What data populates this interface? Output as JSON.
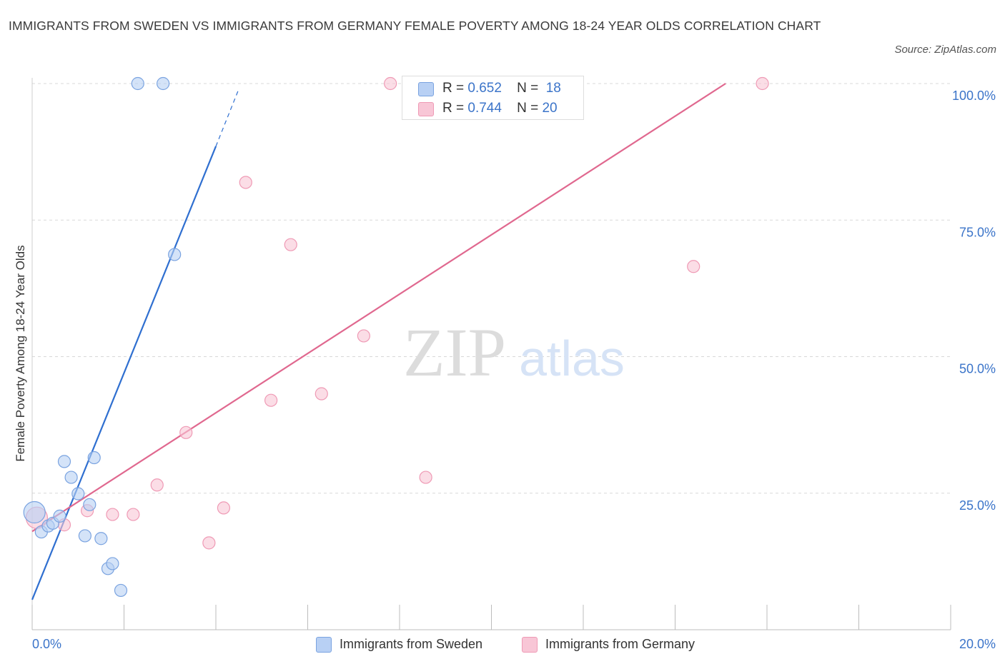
{
  "title": "IMMIGRANTS FROM SWEDEN VS IMMIGRANTS FROM GERMANY FEMALE POVERTY AMONG 18-24 YEAR OLDS CORRELATION CHART",
  "source": "Source: ZipAtlas.com",
  "watermark": {
    "zip": "ZIP",
    "atlas": "atlas"
  },
  "colors": {
    "sweden_fill": "#b8d0f4",
    "sweden_stroke": "#7aa3e0",
    "sweden_line": "#2f6fd0",
    "germany_fill": "#f8c6d6",
    "germany_stroke": "#ef9ab5",
    "germany_line": "#e0688f",
    "grid": "#d8d8d8",
    "tick_label": "#3b74c9"
  },
  "legend_top": [
    {
      "r_label": "R =",
      "r_value": "0.652",
      "n_label": "N =",
      "n_value": "18"
    },
    {
      "r_label": "R =",
      "r_value": "0.744",
      "n_label": "N =",
      "n_value": "20"
    }
  ],
  "legend_bottom": [
    "Immigrants from Sweden",
    "Immigrants from Germany"
  ],
  "chart_data": {
    "type": "scatter",
    "title": "IMMIGRANTS FROM SWEDEN VS IMMIGRANTS FROM GERMANY FEMALE POVERTY AMONG 18-24 YEAR OLDS CORRELATION CHART",
    "xlabel": "",
    "ylabel": "Female Poverty Among 18-24 Year Olds",
    "xlim": [
      0,
      20
    ],
    "ylim": [
      0,
      100
    ],
    "x_tick_labels": [
      {
        "value": 0,
        "label": "0.0%"
      },
      {
        "value": 20,
        "label": "20.0%"
      }
    ],
    "y_tick_labels": [
      {
        "value": 25,
        "label": "25.0%"
      },
      {
        "value": 50,
        "label": "50.0%"
      },
      {
        "value": 75,
        "label": "75.0%"
      },
      {
        "value": 100,
        "label": "100.0%"
      }
    ],
    "grid": true,
    "legend_position": "bottom",
    "series": [
      {
        "name": "Immigrants from Sweden",
        "r": 0.652,
        "n": 18,
        "points": [
          {
            "x": 0.05,
            "y": 21.5,
            "size": "large"
          },
          {
            "x": 0.2,
            "y": 17.9
          },
          {
            "x": 0.35,
            "y": 19.0
          },
          {
            "x": 0.45,
            "y": 19.5
          },
          {
            "x": 0.6,
            "y": 20.8
          },
          {
            "x": 0.7,
            "y": 30.8
          },
          {
            "x": 0.85,
            "y": 27.9
          },
          {
            "x": 1.0,
            "y": 24.9
          },
          {
            "x": 1.15,
            "y": 17.2
          },
          {
            "x": 1.25,
            "y": 22.9
          },
          {
            "x": 1.35,
            "y": 31.5
          },
          {
            "x": 1.5,
            "y": 16.7
          },
          {
            "x": 1.65,
            "y": 11.2
          },
          {
            "x": 1.75,
            "y": 12.1
          },
          {
            "x": 1.93,
            "y": 7.2
          },
          {
            "x": 2.3,
            "y": 100.0
          },
          {
            "x": 2.85,
            "y": 100.0
          },
          {
            "x": 3.1,
            "y": 68.7
          }
        ],
        "trendline": {
          "x_start": 0,
          "y_start": 5.5,
          "x_end": 4.0,
          "y_end": 88.5,
          "dashed_to": {
            "x": 4.5,
            "y": 99.0
          }
        }
      },
      {
        "name": "Immigrants from Germany",
        "r": 0.744,
        "n": 20,
        "points": [
          {
            "x": 0.1,
            "y": 20.5,
            "size": "large"
          },
          {
            "x": 0.7,
            "y": 19.2
          },
          {
            "x": 1.2,
            "y": 21.8
          },
          {
            "x": 1.75,
            "y": 21.1
          },
          {
            "x": 2.2,
            "y": 21.1
          },
          {
            "x": 2.72,
            "y": 26.5
          },
          {
            "x": 3.35,
            "y": 36.1
          },
          {
            "x": 3.85,
            "y": 15.9
          },
          {
            "x": 4.17,
            "y": 22.3
          },
          {
            "x": 4.65,
            "y": 81.9
          },
          {
            "x": 5.2,
            "y": 42.0
          },
          {
            "x": 5.63,
            "y": 70.5
          },
          {
            "x": 6.3,
            "y": 43.2
          },
          {
            "x": 7.22,
            "y": 53.8
          },
          {
            "x": 7.8,
            "y": 100.0
          },
          {
            "x": 8.2,
            "y": 100.0
          },
          {
            "x": 8.57,
            "y": 27.9
          },
          {
            "x": 11.8,
            "y": 100.0
          },
          {
            "x": 14.4,
            "y": 66.5
          },
          {
            "x": 15.9,
            "y": 100.0
          }
        ],
        "trendline": {
          "x_start": 0,
          "y_start": 18.0,
          "x_end": 15.1,
          "y_end": 100.0
        }
      }
    ]
  }
}
